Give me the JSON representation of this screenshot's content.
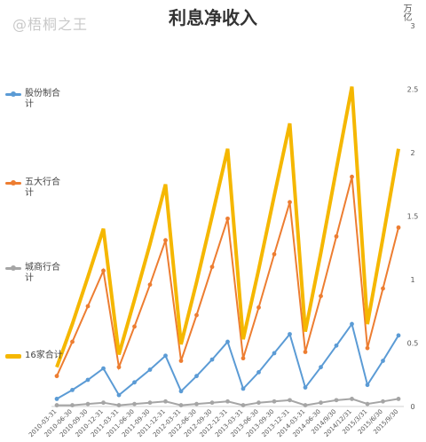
{
  "watermark": "@梧桐之王",
  "chart_data": {
    "type": "line",
    "title": "利息净收入",
    "unit_label": "万亿",
    "ylim": [
      0,
      3
    ],
    "y_ticks": [
      "0",
      "0.5",
      "1",
      "1.5",
      "2",
      "2.5",
      "3"
    ],
    "y_tick_values": [
      0,
      0.5,
      1,
      1.5,
      2,
      2.5,
      3
    ],
    "legend_placement": "left",
    "grid": false,
    "categories": [
      "2010-03-31",
      "2010-06-30",
      "2010-09-30",
      "2010-12-31",
      "2011-03-31",
      "2011-06-30",
      "2011-09-30",
      "2011-12-31",
      "2012-03-31",
      "2012-06-30",
      "2012-09-30",
      "2012-12-31",
      "2013-03-31",
      "2013-06-30",
      "2013-09-30",
      "2013-12-31",
      "2014-03-31",
      "2014-06-30",
      "2014/9/30",
      "2014/12/31",
      "2015/3/31",
      "2015/6/30",
      "2015/9/30"
    ],
    "series": [
      {
        "name": "股份制合计",
        "color": "#5b9bd5",
        "width": 2,
        "values": [
          0.06,
          0.13,
          0.21,
          0.3,
          0.09,
          0.19,
          0.29,
          0.4,
          0.12,
          0.24,
          0.37,
          0.51,
          0.14,
          0.27,
          0.42,
          0.57,
          0.15,
          0.31,
          0.48,
          0.65,
          0.17,
          0.36,
          0.56
        ]
      },
      {
        "name": "五大行合计",
        "color": "#ed7d31",
        "width": 2,
        "values": [
          0.24,
          0.51,
          0.79,
          1.07,
          0.31,
          0.63,
          0.96,
          1.31,
          0.36,
          0.72,
          1.1,
          1.48,
          0.38,
          0.78,
          1.2,
          1.61,
          0.43,
          0.87,
          1.34,
          1.81,
          0.46,
          0.93,
          1.41
        ]
      },
      {
        "name": "城商行合计",
        "color": "#a5a5a5",
        "width": 2,
        "values": [
          0.01,
          0.01,
          0.02,
          0.03,
          0.01,
          0.02,
          0.03,
          0.04,
          0.01,
          0.02,
          0.03,
          0.04,
          0.01,
          0.03,
          0.04,
          0.05,
          0.01,
          0.03,
          0.05,
          0.06,
          0.02,
          0.04,
          0.06
        ]
      },
      {
        "name": "16家合计",
        "color": "#f5b700",
        "width": 4,
        "values": [
          0.31,
          0.65,
          1.02,
          1.4,
          0.41,
          0.84,
          1.28,
          1.75,
          0.49,
          0.98,
          1.5,
          2.03,
          0.53,
          1.08,
          1.66,
          2.23,
          0.59,
          1.21,
          1.87,
          2.52,
          0.65,
          1.33,
          2.03
        ]
      }
    ]
  }
}
